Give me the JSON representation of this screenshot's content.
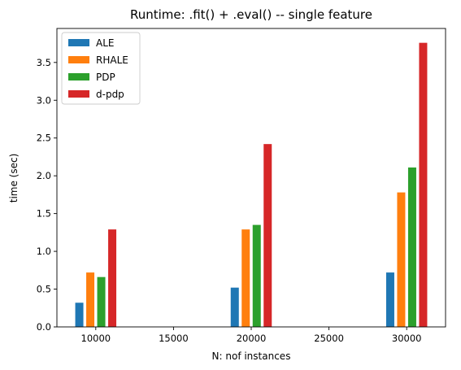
{
  "chart_data": {
    "type": "bar",
    "title": "Runtime: .fit() + .eval() -- single feature",
    "xlabel": "N: nof instances",
    "ylabel": "time (sec)",
    "xlim": [
      7500,
      32500
    ],
    "ylim": [
      0,
      3.95
    ],
    "xticks": [
      10000,
      15000,
      20000,
      25000,
      30000
    ],
    "yticks": [
      0.0,
      0.5,
      1.0,
      1.5,
      2.0,
      2.5,
      3.0,
      3.5
    ],
    "x": [
      10000,
      20000,
      30000
    ],
    "legend_position": "top-left",
    "grid": false,
    "series": [
      {
        "name": "ALE",
        "color": "#1f77b4",
        "values": [
          0.32,
          0.52,
          0.72
        ]
      },
      {
        "name": "RHALE",
        "color": "#ff7f0e",
        "values": [
          0.72,
          1.29,
          1.78
        ]
      },
      {
        "name": "PDP",
        "color": "#2ca02c",
        "values": [
          0.66,
          1.35,
          2.11
        ]
      },
      {
        "name": "d-pdp",
        "color": "#d62728",
        "values": [
          1.29,
          2.42,
          3.76
        ]
      }
    ]
  }
}
